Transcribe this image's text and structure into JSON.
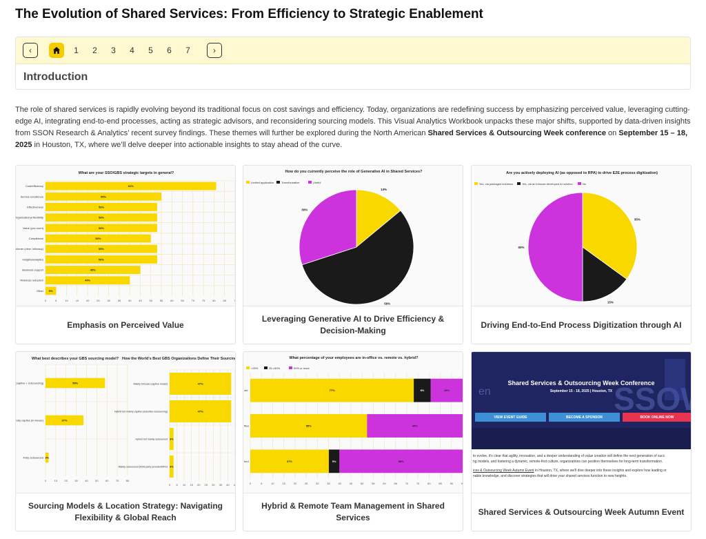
{
  "page": {
    "title": "The Evolution of Shared Services: From Efficiency to Strategic Enablement"
  },
  "nav": {
    "prev": "‹",
    "next": "›",
    "pages": [
      "1",
      "2",
      "3",
      "4",
      "5",
      "6",
      "7"
    ],
    "section": "Introduction"
  },
  "intro": {
    "p1": "The role of shared services is rapidly evolving beyond its traditional focus on cost savings and efficiency. Today, organizations are redefining success by emphasizing perceived value, leveraging cutting-edge AI, integrating end-to-end processes, acting as strategic advisors, and reconsidering sourcing models. This Visual Analytics Workbook unpacks these major shifts, supported by data-driven insights from SSON Research & Analytics’ recent survey findings. These themes will further be explored during the North American ",
    "bold1": "Shared Services & Outsourcing Week conference",
    "p2": " on ",
    "bold2": "September 15 – 18, 2025",
    "p3": " in Houston, TX, where we’ll delve deeper into actionable insights to stay ahead of the curve."
  },
  "cards": [
    {
      "caption": "Emphasis on Perceived Value"
    },
    {
      "caption": "Leveraging Generative AI to Drive Efficiency & Decision-Making"
    },
    {
      "caption": "Driving End-to-End Process Digitization through AI"
    },
    {
      "caption": "Sourcing Models & Location Strategy: Navigating Flexibility & Global Reach"
    },
    {
      "caption": "Hybrid & Remote Team Management in Shared Services"
    },
    {
      "caption": "Shared Services & Outsourcing Week Autumn Event"
    }
  ],
  "colors": {
    "yellow": "#f9d800",
    "black": "#1a1a1a",
    "purple": "#cc33dd",
    "accent": "#f4cc00"
  },
  "chart_data": [
    {
      "type": "bar",
      "title": "What are your SSO/GBS strategic targets in general?",
      "categories": [
        "Cost/efficiency",
        "Service excellence",
        "Effectiveness",
        "Organizational flexibility",
        "Value (pro-room)",
        "Compliance",
        "Customer (view: intimacy)",
        "Insights/analytics",
        "Business support",
        "Risk/loss reduction",
        "Other"
      ],
      "values": [
        81,
        55,
        53,
        53,
        53,
        50,
        53,
        53,
        45,
        40,
        5
      ],
      "labels": [
        "81%",
        "55%",
        "53%",
        "53%",
        "53%",
        "50%",
        "53%",
        "53%",
        "45%",
        "40%",
        "5%"
      ],
      "xticks": [
        "0",
        "5",
        "10",
        "15",
        "20",
        "25",
        "30",
        "35",
        "40",
        "45",
        "50",
        "55",
        "60",
        "65",
        "70",
        "75",
        "80",
        "85",
        "9"
      ],
      "xlim": [
        0,
        90
      ]
    },
    {
      "type": "pie",
      "title": "How do you currently perceive the role of Generative AI in Shared Services?",
      "legend": [
        "Limited application",
        "Transformative",
        "Useful"
      ],
      "values": [
        14,
        56,
        30
      ],
      "labels": [
        "14%",
        "56%",
        "30%"
      ]
    },
    {
      "type": "pie",
      "title": "Are you actively deploying AI (as opposed to RPA) to drive E2E process digitization)",
      "legend": [
        "Yes, via packaged solutions",
        "Yes, via an inhouse developed AI solution",
        "No"
      ],
      "values": [
        35,
        15,
        50
      ],
      "labels": [
        "35%",
        "15%",
        "50%"
      ]
    },
    {
      "type": "bar",
      "title": "What best describes your GBS sourcing model?",
      "categories": [
        "Hybrid (captive + outsourcing)",
        "Fully captive (in-house)",
        "Fully outsourced"
      ],
      "values": [
        58,
        37,
        3
      ],
      "labels": [
        "58%",
        "37%",
        "3%"
      ],
      "xticks": [
        "0",
        "10",
        "20",
        "30",
        "40",
        "50",
        "60",
        "70",
        "80"
      ],
      "xlim": [
        0,
        80
      ]
    },
    {
      "type": "bar",
      "title": "How the World's Best GBS Organizations Define Their Sourcing Model",
      "categories": [
        "Mainly inhouse (captive model)",
        "Hybrid but mainly captive (selective outsourcing)",
        "Hybrid but mainly outsourced",
        "Mainly outsourced (third-party provider/BPO)"
      ],
      "values": [
        47,
        47,
        3,
        3
      ],
      "labels": [
        "47%",
        "47%",
        "3%",
        "3%"
      ],
      "xticks": [
        "0",
        "5",
        "10",
        "15",
        "20",
        "25",
        "30",
        "35",
        "40",
        "45"
      ],
      "xlim": [
        0,
        50
      ]
    },
    {
      "type": "bar",
      "title": "What percentage of your employees are in-office vs. remote vs. hybrid?",
      "stacked": true,
      "legend": [
        "<25%",
        "25-<50%",
        "50% or more"
      ],
      "categories": [
        "In-office",
        "Remote",
        "Hybrid"
      ],
      "tick_labels": [
        "ote",
        "ffice",
        "brid"
      ],
      "series": [
        {
          "name": "<25%",
          "values": [
            77,
            55,
            37
          ],
          "labels": [
            "77%",
            "55%",
            "37%"
          ]
        },
        {
          "name": "25-<50%",
          "values": [
            8,
            0,
            5
          ],
          "labels": [
            "8%",
            "",
            "5%"
          ]
        },
        {
          "name": "50% or more",
          "values": [
            15,
            45,
            58
          ],
          "labels": [
            "15%",
            "45%",
            "58%"
          ]
        }
      ],
      "xticks": [
        "0",
        "5",
        "10",
        "15",
        "20",
        "25",
        "30",
        "35",
        "40",
        "45",
        "50",
        "55",
        "60",
        "65",
        "70",
        "75",
        "80",
        "85",
        "90",
        "95"
      ],
      "xlim": [
        0,
        100
      ]
    }
  ],
  "event": {
    "bg_word": "SSOW",
    "bg_word2": "en",
    "title": "Shared Services & Outsourcing Week Conference",
    "date": "September 15 - 18, 2025 | Houston, TX",
    "btn1": "VIEW EVENT GUIDE",
    "btn2": "BECOME A SPONSOR",
    "btn3": "BOOK ONLINE NOW",
    "text1": "to evolve, it's clear that agility, innovation, and a deeper understanding of value creation will define the next generation of succ",
    "text2": "ng models, and fostering a dynamic, remote-first culture, organizations can position themselves for long-term transformation.",
    "text3_link": "ices & Outsourcing Week Autumn Event",
    "text3": " in Houston, TX, where we'll dive deeper into these insights and explore how leading or",
    "text4": "nable knowledge, and discover strategies that will drive your shared services function to new heights."
  }
}
